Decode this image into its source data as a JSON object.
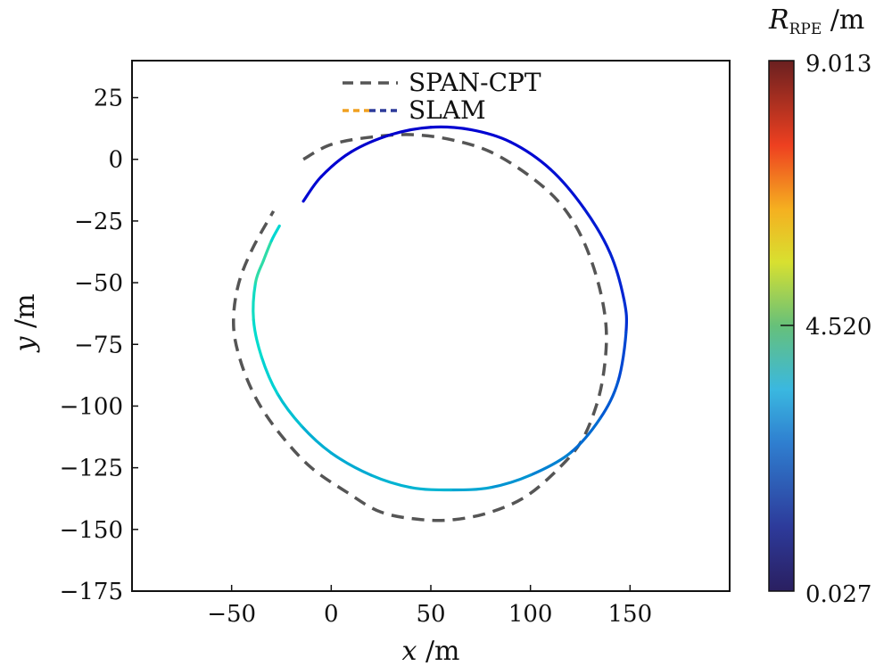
{
  "chart_data": {
    "type": "line",
    "title": "",
    "xlabel": {
      "var": "x",
      "unit": " /m"
    },
    "ylabel": {
      "var": "y",
      "unit": " /m"
    },
    "xlim": [
      -100,
      200
    ],
    "ylim": [
      -175,
      40
    ],
    "xticks": [
      -50,
      0,
      50,
      100,
      150
    ],
    "xtick_labels": [
      "−50",
      "0",
      "50",
      "100",
      "150"
    ],
    "yticks": [
      25,
      0,
      -25,
      -50,
      -75,
      -100,
      -125,
      -150,
      -175
    ],
    "ytick_labels": [
      "25",
      "0",
      "−25",
      "−50",
      "−75",
      "−100",
      "−125",
      "−150",
      "−175"
    ],
    "legend": {
      "placement": "top-center",
      "entries": [
        "SPAN-CPT",
        "SLAM"
      ]
    },
    "series": [
      {
        "name": "SPAN-CPT",
        "style": "dashed",
        "color": "#555555",
        "points": [
          [
            -14,
            0
          ],
          [
            0,
            6
          ],
          [
            20,
            9
          ],
          [
            40,
            10
          ],
          [
            60,
            8
          ],
          [
            80,
            3
          ],
          [
            100,
            -7
          ],
          [
            115,
            -18
          ],
          [
            126,
            -32
          ],
          [
            134,
            -50
          ],
          [
            138,
            -68
          ],
          [
            137,
            -85
          ],
          [
            133,
            -100
          ],
          [
            125,
            -115
          ],
          [
            112,
            -127
          ],
          [
            97,
            -137
          ],
          [
            80,
            -143
          ],
          [
            62,
            -146
          ],
          [
            45,
            -146
          ],
          [
            25,
            -143
          ],
          [
            8,
            -135
          ],
          [
            -10,
            -125
          ],
          [
            -25,
            -112
          ],
          [
            -37,
            -98
          ],
          [
            -45,
            -83
          ],
          [
            -49,
            -68
          ],
          [
            -47,
            -52
          ],
          [
            -40,
            -37
          ],
          [
            -29,
            -21
          ]
        ]
      },
      {
        "name": "SLAM",
        "style": "dash-dot",
        "color_by": "R_RPE",
        "points": [
          [
            -14,
            -17
          ],
          [
            -5,
            -7
          ],
          [
            10,
            3
          ],
          [
            30,
            10
          ],
          [
            50,
            13
          ],
          [
            70,
            12
          ],
          [
            90,
            7
          ],
          [
            110,
            -4
          ],
          [
            127,
            -20
          ],
          [
            140,
            -38
          ],
          [
            147,
            -57
          ],
          [
            148,
            -70
          ],
          [
            144,
            -90
          ],
          [
            135,
            -105
          ],
          [
            120,
            -119
          ],
          [
            100,
            -128
          ],
          [
            80,
            -133
          ],
          [
            60,
            -134
          ],
          [
            40,
            -133
          ],
          [
            20,
            -128
          ],
          [
            0,
            -119
          ],
          [
            -15,
            -108
          ],
          [
            -27,
            -95
          ],
          [
            -35,
            -80
          ],
          [
            -39,
            -65
          ],
          [
            -38,
            -50
          ],
          [
            -34,
            -41
          ],
          [
            -30,
            -33
          ],
          [
            -26,
            -27
          ]
        ],
        "rpe": [
          0.6,
          0.5,
          0.4,
          0.4,
          0.4,
          0.5,
          0.5,
          0.6,
          0.7,
          0.8,
          0.9,
          1.1,
          1.4,
          1.5,
          1.8,
          2.0,
          2.2,
          2.4,
          2.5,
          2.4,
          2.3,
          2.5,
          2.7,
          2.9,
          3.0,
          3.2,
          3.6,
          3.2,
          2.5
        ]
      }
    ],
    "colorbar": {
      "label_var": "R",
      "label_sub": "RPE",
      "label_unit": " /m",
      "min": 0.027,
      "max": 9.013,
      "ticks": [
        9.013,
        4.52,
        0.027
      ],
      "tick_labels": [
        "9.013",
        "4.520",
        "0.027"
      ],
      "colormap": "jet"
    }
  }
}
